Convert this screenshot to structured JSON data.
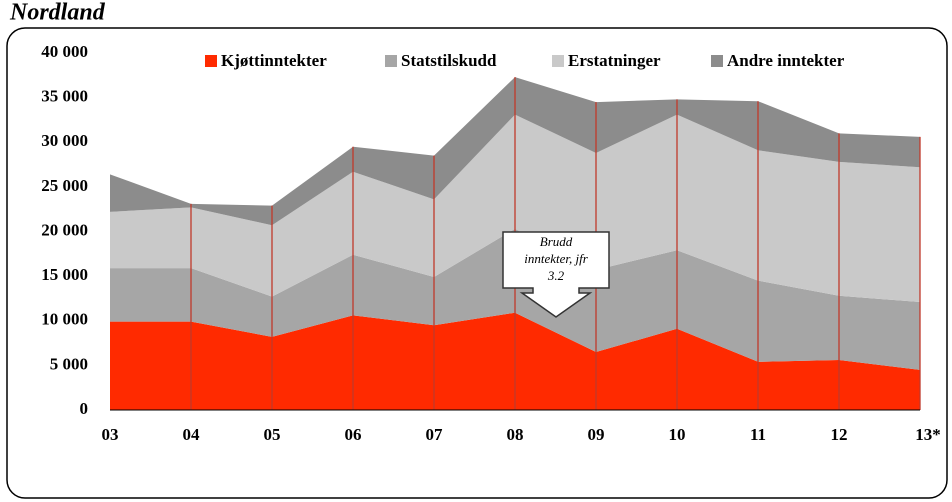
{
  "chart_data": {
    "type": "stacked-area",
    "title": "Nordland",
    "categories": [
      "03",
      "04",
      "05",
      "06",
      "07",
      "08",
      "09",
      "10",
      "11",
      "12",
      "13*"
    ],
    "series": [
      {
        "name": "Kjøttinntekter",
        "color": "#ff2a00",
        "values": [
          9900,
          9900,
          8200,
          10600,
          9500,
          10900,
          6500,
          9100,
          5400,
          5600,
          4500
        ]
      },
      {
        "name": "Statstilskudd",
        "color": "#a6a6a6",
        "values": [
          6000,
          6000,
          4500,
          6800,
          5400,
          9400,
          9200,
          8800,
          9100,
          7200,
          7600
        ]
      },
      {
        "name": "Erstatninger",
        "color": "#c9c9c9",
        "values": [
          6300,
          6800,
          8000,
          9300,
          8700,
          12800,
          13100,
          15200,
          14600,
          15000,
          15100
        ]
      },
      {
        "name": "Andre inntekter",
        "color": "#8c8c8c",
        "values": [
          4200,
          400,
          2200,
          2800,
          4900,
          4200,
          5700,
          1700,
          5500,
          3200,
          3400
        ]
      }
    ],
    "ylim": [
      0,
      40000
    ],
    "yticks": [
      0,
      {
        "value": 5000,
        "label": "5 000"
      },
      {
        "value": 10000,
        "label": "10 000"
      },
      {
        "value": 15000,
        "label": "15 000"
      },
      {
        "value": 20000,
        "label": "20 000"
      },
      {
        "value": 25000,
        "label": "25 000"
      },
      {
        "value": 30000,
        "label": "30 000"
      },
      {
        "value": 35000,
        "label": "35 000"
      },
      {
        "value": 40000,
        "label": "40 000"
      }
    ],
    "annotation": [
      "Brudd",
      "inntekter, jfr",
      "3.2"
    ],
    "divider_color": "#c0392b"
  }
}
